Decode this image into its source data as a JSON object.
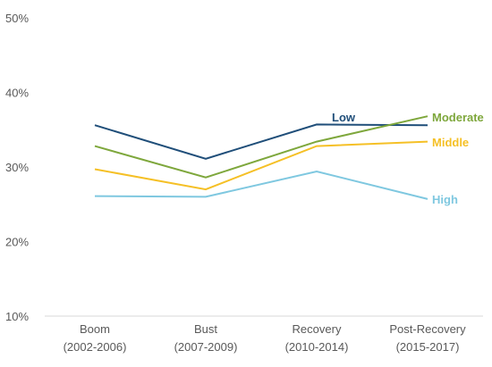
{
  "chart_data": {
    "type": "line",
    "categories": [
      [
        "Boom",
        "(2002-2006)"
      ],
      [
        "Bust",
        "(2007-2009)"
      ],
      [
        "Recovery",
        "(2010-2014)"
      ],
      [
        "Post-Recovery",
        "(2015-2017)"
      ]
    ],
    "ylim": [
      10,
      50
    ],
    "yticks": [
      "10%",
      "20%",
      "30%",
      "40%",
      "50%"
    ],
    "ytick_values": [
      10,
      20,
      30,
      40,
      50
    ],
    "grid": false,
    "series": [
      {
        "name": "Low",
        "values": [
          35.6,
          31.1,
          35.7,
          35.6
        ],
        "color": "#1F4E79"
      },
      {
        "name": "Moderate",
        "values": [
          32.8,
          28.6,
          33.4,
          36.8
        ],
        "color": "#7EA73C"
      },
      {
        "name": "Middle",
        "values": [
          29.7,
          27.0,
          32.8,
          33.4
        ],
        "color": "#F5C026"
      },
      {
        "name": "High",
        "values": [
          26.1,
          26.0,
          29.4,
          25.7
        ],
        "color": "#7FC8E0"
      }
    ]
  }
}
